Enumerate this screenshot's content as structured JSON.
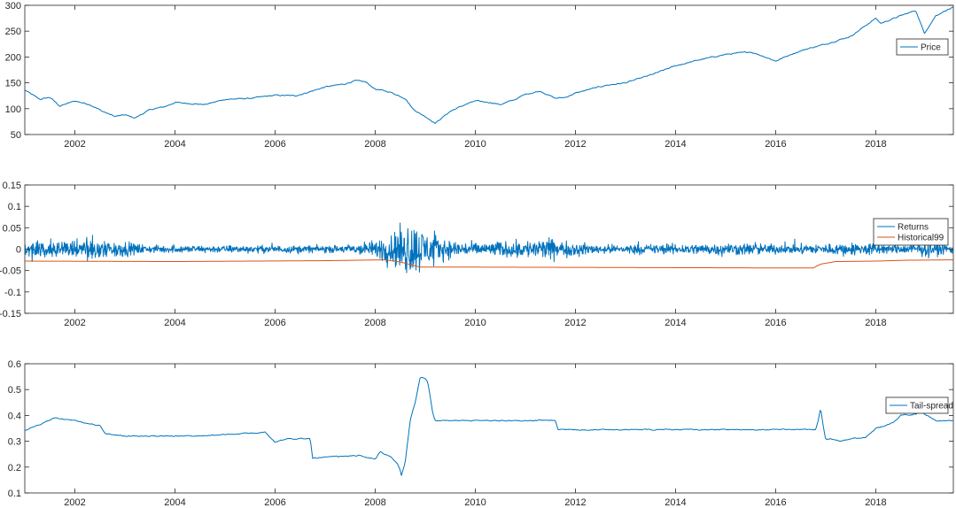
{
  "chart_data": [
    {
      "type": "line",
      "title": "",
      "xlabel": "",
      "ylabel": "",
      "xlim": [
        2001.0,
        2019.55
      ],
      "ylim": [
        50,
        300
      ],
      "xticks": [
        2002,
        2004,
        2006,
        2008,
        2010,
        2012,
        2014,
        2016,
        2018
      ],
      "yticks": [
        50,
        100,
        150,
        200,
        250,
        300
      ],
      "legend_position": "top-right",
      "grid": false,
      "series": [
        {
          "name": "Price",
          "color": "#0072BD",
          "x": [
            2001.0,
            2001.3,
            2001.5,
            2001.7,
            2002.0,
            2002.3,
            2002.55,
            2002.8,
            2003.0,
            2003.2,
            2003.5,
            2003.8,
            2004.0,
            2004.3,
            2004.6,
            2005.0,
            2005.5,
            2006.0,
            2006.4,
            2006.6,
            2007.0,
            2007.4,
            2007.6,
            2007.8,
            2008.0,
            2008.3,
            2008.6,
            2008.75,
            2008.9,
            2009.0,
            2009.2,
            2009.5,
            2009.8,
            2010.0,
            2010.3,
            2010.5,
            2010.8,
            2011.0,
            2011.3,
            2011.6,
            2011.8,
            2012.0,
            2012.3,
            2012.6,
            2013.0,
            2013.5,
            2014.0,
            2014.5,
            2015.0,
            2015.5,
            2015.8,
            2016.0,
            2016.3,
            2016.6,
            2017.0,
            2017.5,
            2018.0,
            2018.1,
            2018.5,
            2018.8,
            2018.97,
            2019.2,
            2019.4,
            2019.55
          ],
          "values": [
            136,
            118,
            122,
            105,
            115,
            108,
            95,
            85,
            88,
            82,
            98,
            104,
            112,
            110,
            108,
            118,
            120,
            126,
            125,
            130,
            142,
            148,
            154,
            152,
            138,
            132,
            120,
            100,
            90,
            85,
            72,
            95,
            108,
            115,
            112,
            108,
            118,
            128,
            134,
            120,
            122,
            130,
            138,
            145,
            150,
            165,
            183,
            195,
            205,
            210,
            200,
            192,
            205,
            215,
            225,
            240,
            275,
            265,
            280,
            290,
            246,
            280,
            290,
            296
          ]
        }
      ]
    },
    {
      "type": "line",
      "title": "",
      "xlabel": "",
      "ylabel": "",
      "xlim": [
        2001.0,
        2019.55
      ],
      "ylim": [
        -0.15,
        0.15
      ],
      "xticks": [
        2002,
        2004,
        2006,
        2008,
        2010,
        2012,
        2014,
        2016,
        2018
      ],
      "yticks": [
        -0.15,
        -0.1,
        -0.05,
        0,
        0.05,
        0.1,
        0.15
      ],
      "legend_position": "top-right",
      "grid": false,
      "series": [
        {
          "name": "Returns",
          "color": "#0072BD",
          "volatility_regimes": {
            "x": [
              2001.0,
              2002.5,
              2003.5,
              2007.3,
              2008.0,
              2008.7,
              2008.9,
              2009.3,
              2010.0,
              2011.5,
              2011.8,
              2012.5,
              2015.5,
              2016.2,
              2018.0,
              2018.3,
              2019.0,
              2019.55
            ],
            "amplitude": [
              0.022,
              0.035,
              0.012,
              0.012,
              0.028,
              0.09,
              0.075,
              0.035,
              0.02,
              0.035,
              0.025,
              0.014,
              0.02,
              0.014,
              0.022,
              0.012,
              0.025,
              0.015
            ]
          }
        },
        {
          "name": "Historical99",
          "color": "#D95319",
          "x": [
            2001.0,
            2004.0,
            2007.0,
            2008.2,
            2008.5,
            2008.9,
            2010.0,
            2013.0,
            2016.0,
            2016.75,
            2016.9,
            2017.2,
            2018.0,
            2018.6,
            2019.55
          ],
          "values": [
            -0.028,
            -0.029,
            -0.027,
            -0.025,
            -0.03,
            -0.042,
            -0.042,
            -0.043,
            -0.044,
            -0.044,
            -0.035,
            -0.029,
            -0.028,
            -0.026,
            -0.025
          ]
        }
      ]
    },
    {
      "type": "line",
      "title": "",
      "xlabel": "",
      "ylabel": "",
      "xlim": [
        2001.0,
        2019.55
      ],
      "ylim": [
        0.1,
        0.6
      ],
      "xticks": [
        2002,
        2004,
        2006,
        2008,
        2010,
        2012,
        2014,
        2016,
        2018
      ],
      "yticks": [
        0.1,
        0.2,
        0.3,
        0.4,
        0.5,
        0.6
      ],
      "legend_position": "top-right",
      "grid": false,
      "series": [
        {
          "name": "Tail-spread",
          "color": "#0072BD",
          "x": [
            2001.0,
            2001.1,
            2001.6,
            2002.0,
            2002.5,
            2002.6,
            2002.8,
            2003.0,
            2003.3,
            2004.0,
            2005.0,
            2005.8,
            2006.0,
            2006.2,
            2006.7,
            2006.75,
            2007.2,
            2007.7,
            2008.0,
            2008.1,
            2008.3,
            2008.45,
            2008.5,
            2008.52,
            2008.6,
            2008.65,
            2008.7,
            2008.75,
            2008.8,
            2008.9,
            2009.0,
            2009.05,
            2009.15,
            2009.2,
            2009.25,
            2011.6,
            2011.65,
            2016.8,
            2016.85,
            2016.9,
            2016.95,
            2017.0,
            2017.1,
            2017.3,
            2017.5,
            2017.8,
            2018.0,
            2018.2,
            2018.4,
            2018.5,
            2018.8,
            2018.9,
            2019.2,
            2019.55
          ],
          "values": [
            0.34,
            0.35,
            0.39,
            0.38,
            0.36,
            0.33,
            0.325,
            0.32,
            0.32,
            0.32,
            0.325,
            0.335,
            0.295,
            0.31,
            0.31,
            0.235,
            0.24,
            0.245,
            0.23,
            0.26,
            0.24,
            0.21,
            0.19,
            0.165,
            0.22,
            0.3,
            0.38,
            0.42,
            0.45,
            0.55,
            0.545,
            0.53,
            0.41,
            0.38,
            0.38,
            0.38,
            0.345,
            0.345,
            0.38,
            0.43,
            0.36,
            0.305,
            0.31,
            0.3,
            0.31,
            0.315,
            0.35,
            0.36,
            0.38,
            0.4,
            0.405,
            0.415,
            0.38,
            0.38
          ]
        }
      ]
    }
  ]
}
